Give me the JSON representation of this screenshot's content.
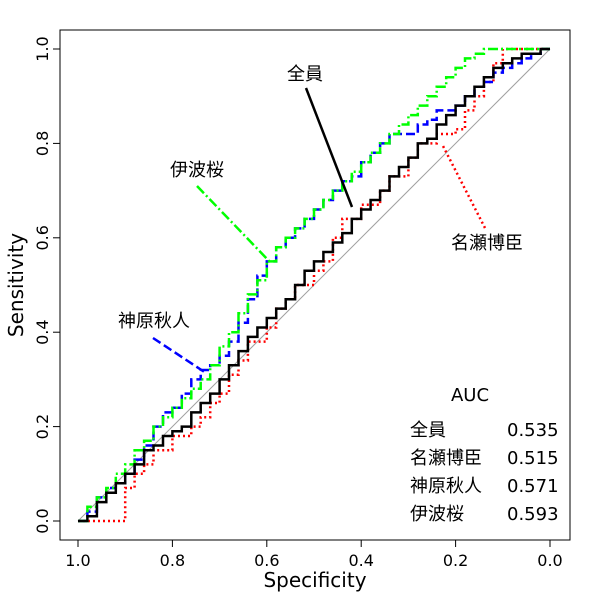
{
  "chart_data": {
    "type": "line",
    "xlabel": "Specificity",
    "ylabel": "Sensitivity",
    "xlim": [
      1.0,
      0.0
    ],
    "ylim": [
      0.0,
      1.0
    ],
    "x_ticks": [
      "1.0",
      "0.8",
      "0.6",
      "0.4",
      "0.2",
      "0.0"
    ],
    "y_ticks": [
      "0.0",
      "0.2",
      "0.4",
      "0.6",
      "0.8",
      "1.0"
    ],
    "x_tick_values": [
      1.0,
      0.8,
      0.6,
      0.4,
      0.2,
      0.0
    ],
    "y_tick_values": [
      0.0,
      0.2,
      0.4,
      0.6,
      0.8,
      1.0
    ],
    "grid": false,
    "diagonal_reference": true,
    "series": [
      {
        "name": "全員",
        "color": "#000000",
        "dash": "solid",
        "specificity": [
          1.0,
          0.98,
          0.96,
          0.94,
          0.92,
          0.9,
          0.88,
          0.86,
          0.84,
          0.82,
          0.8,
          0.78,
          0.76,
          0.74,
          0.72,
          0.7,
          0.68,
          0.66,
          0.64,
          0.62,
          0.6,
          0.58,
          0.56,
          0.54,
          0.52,
          0.5,
          0.48,
          0.46,
          0.44,
          0.42,
          0.4,
          0.38,
          0.36,
          0.34,
          0.32,
          0.3,
          0.28,
          0.26,
          0.24,
          0.22,
          0.2,
          0.18,
          0.16,
          0.14,
          0.12,
          0.1,
          0.08,
          0.06,
          0.04,
          0.02,
          0.0
        ],
        "sensitivity": [
          0.0,
          0.01,
          0.04,
          0.06,
          0.08,
          0.1,
          0.12,
          0.15,
          0.16,
          0.18,
          0.19,
          0.2,
          0.23,
          0.25,
          0.27,
          0.3,
          0.33,
          0.36,
          0.39,
          0.41,
          0.43,
          0.45,
          0.47,
          0.5,
          0.53,
          0.55,
          0.57,
          0.59,
          0.61,
          0.64,
          0.66,
          0.68,
          0.7,
          0.73,
          0.75,
          0.77,
          0.8,
          0.81,
          0.84,
          0.86,
          0.88,
          0.9,
          0.92,
          0.94,
          0.96,
          0.97,
          0.98,
          0.99,
          0.99,
          1.0,
          1.0
        ]
      },
      {
        "name": "名瀬博臣",
        "color": "#ff0000",
        "dash": "dotted",
        "specificity": [
          1.0,
          0.98,
          0.96,
          0.94,
          0.92,
          0.9,
          0.88,
          0.86,
          0.84,
          0.82,
          0.8,
          0.78,
          0.76,
          0.74,
          0.72,
          0.7,
          0.68,
          0.66,
          0.64,
          0.62,
          0.6,
          0.58,
          0.56,
          0.54,
          0.52,
          0.5,
          0.48,
          0.46,
          0.44,
          0.42,
          0.4,
          0.38,
          0.36,
          0.34,
          0.32,
          0.3,
          0.28,
          0.26,
          0.24,
          0.22,
          0.2,
          0.18,
          0.16,
          0.14,
          0.12,
          0.1,
          0.08,
          0.06,
          0.04,
          0.02,
          0.0
        ],
        "sensitivity": [
          0.0,
          0.0,
          0.0,
          0.0,
          0.0,
          0.07,
          0.1,
          0.12,
          0.15,
          0.15,
          0.18,
          0.18,
          0.2,
          0.22,
          0.25,
          0.27,
          0.31,
          0.34,
          0.38,
          0.38,
          0.41,
          0.45,
          0.47,
          0.5,
          0.5,
          0.53,
          0.55,
          0.6,
          0.64,
          0.64,
          0.67,
          0.67,
          0.7,
          0.73,
          0.73,
          0.77,
          0.8,
          0.8,
          0.82,
          0.82,
          0.83,
          0.87,
          0.9,
          0.93,
          0.97,
          1.0,
          1.0,
          1.0,
          1.0,
          1.0,
          1.0
        ]
      },
      {
        "name": "神原秋人",
        "color": "#0000ff",
        "dash": "dashed",
        "specificity": [
          1.0,
          0.98,
          0.96,
          0.94,
          0.92,
          0.9,
          0.88,
          0.86,
          0.84,
          0.82,
          0.8,
          0.78,
          0.76,
          0.74,
          0.72,
          0.7,
          0.68,
          0.66,
          0.64,
          0.62,
          0.6,
          0.58,
          0.56,
          0.54,
          0.52,
          0.5,
          0.48,
          0.46,
          0.44,
          0.42,
          0.4,
          0.38,
          0.36,
          0.34,
          0.32,
          0.3,
          0.28,
          0.26,
          0.24,
          0.22,
          0.2,
          0.18,
          0.16,
          0.14,
          0.12,
          0.1,
          0.08,
          0.06,
          0.04,
          0.02,
          0.0
        ],
        "sensitivity": [
          0.0,
          0.02,
          0.05,
          0.07,
          0.08,
          0.1,
          0.13,
          0.16,
          0.2,
          0.23,
          0.24,
          0.27,
          0.3,
          0.32,
          0.33,
          0.35,
          0.38,
          0.42,
          0.47,
          0.52,
          0.55,
          0.58,
          0.6,
          0.62,
          0.64,
          0.66,
          0.68,
          0.7,
          0.72,
          0.73,
          0.76,
          0.78,
          0.8,
          0.82,
          0.82,
          0.82,
          0.84,
          0.85,
          0.87,
          0.87,
          0.88,
          0.9,
          0.92,
          0.93,
          0.95,
          0.96,
          0.97,
          0.98,
          0.99,
          1.0,
          1.0
        ]
      },
      {
        "name": "伊波桜",
        "color": "#00ff00",
        "dash": "dashdot",
        "specificity": [
          1.0,
          0.98,
          0.96,
          0.94,
          0.92,
          0.9,
          0.88,
          0.86,
          0.84,
          0.82,
          0.8,
          0.78,
          0.76,
          0.74,
          0.72,
          0.7,
          0.68,
          0.66,
          0.64,
          0.62,
          0.6,
          0.58,
          0.56,
          0.54,
          0.52,
          0.5,
          0.48,
          0.46,
          0.44,
          0.42,
          0.4,
          0.38,
          0.36,
          0.34,
          0.32,
          0.3,
          0.28,
          0.26,
          0.24,
          0.22,
          0.2,
          0.18,
          0.16,
          0.14,
          0.12,
          0.1,
          0.08,
          0.06,
          0.04,
          0.02,
          0.0
        ],
        "sensitivity": [
          0.0,
          0.03,
          0.05,
          0.07,
          0.1,
          0.12,
          0.15,
          0.17,
          0.2,
          0.22,
          0.24,
          0.26,
          0.28,
          0.3,
          0.33,
          0.37,
          0.4,
          0.44,
          0.48,
          0.51,
          0.55,
          0.58,
          0.6,
          0.62,
          0.64,
          0.66,
          0.68,
          0.7,
          0.72,
          0.74,
          0.76,
          0.78,
          0.8,
          0.82,
          0.84,
          0.86,
          0.88,
          0.9,
          0.92,
          0.94,
          0.96,
          0.98,
          0.99,
          1.0,
          1.0,
          1.0,
          1.0,
          1.0,
          1.0,
          1.0,
          1.0
        ]
      }
    ],
    "annotations": [
      {
        "label": "全員",
        "series": 0
      },
      {
        "label": "名瀬博臣",
        "series": 1
      },
      {
        "label": "神原秋人",
        "series": 2
      },
      {
        "label": "伊波桜",
        "series": 3
      }
    ],
    "auc_table": {
      "title": "AUC",
      "rows": [
        {
          "name": "全員",
          "value": "0.535"
        },
        {
          "name": "名瀬博臣",
          "value": "0.515"
        },
        {
          "name": "神原秋人",
          "value": "0.571"
        },
        {
          "name": "伊波桜",
          "value": "0.593"
        }
      ]
    }
  }
}
